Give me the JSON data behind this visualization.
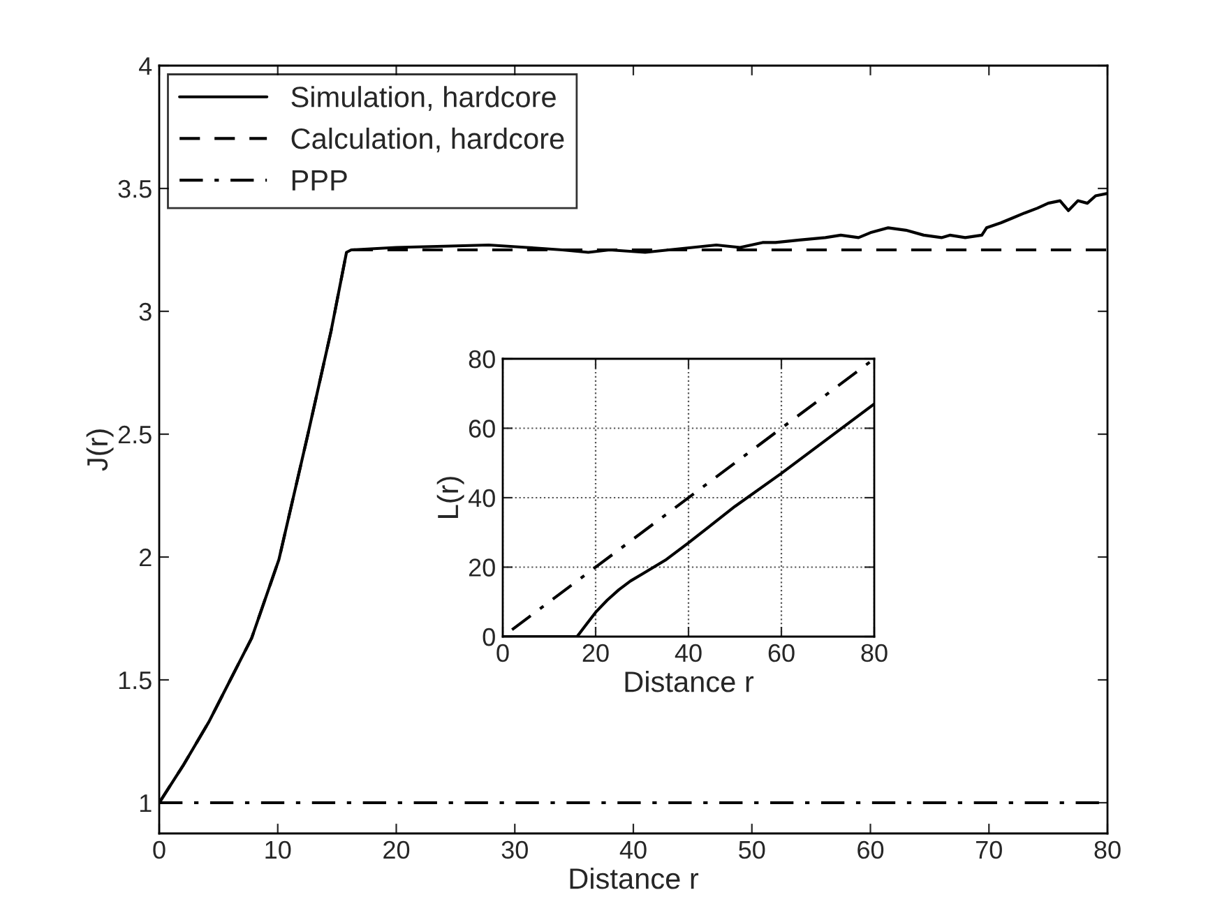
{
  "chart_data": [
    {
      "type": "line",
      "xlabel": "Distance r",
      "ylabel": "J(r)",
      "xlim": [
        0,
        80
      ],
      "ylim": [
        0.875,
        4
      ],
      "xticks": [
        0,
        10,
        20,
        30,
        40,
        50,
        60,
        70,
        80
      ],
      "yticks": [
        1,
        1.5,
        2,
        2.5,
        3,
        3.5,
        4
      ],
      "legend": "top left",
      "grid": false,
      "series": [
        {
          "name": "Simulation, hardcore",
          "color": "#000000",
          "line_style": "solid",
          "x": [
            0,
            2,
            4.2,
            6,
            7.8,
            10.1,
            12.5,
            14.5,
            15.8,
            16.2,
            20,
            24,
            27.8,
            31,
            34,
            36.2,
            38,
            41,
            43,
            45,
            47,
            49,
            50.9,
            52,
            54,
            56.2,
            57.5,
            59,
            60,
            61.5,
            63,
            64.5,
            66,
            66.7,
            68,
            69.4,
            69.8,
            71,
            72,
            73,
            74.1,
            75,
            76,
            76.7,
            77.5,
            78.3,
            79,
            80
          ],
          "values": [
            1,
            1.15,
            1.33,
            1.5,
            1.67,
            1.99,
            2.49,
            2.92,
            3.24,
            3.25,
            3.26,
            3.265,
            3.27,
            3.26,
            3.25,
            3.24,
            3.25,
            3.24,
            3.25,
            3.26,
            3.27,
            3.26,
            3.28,
            3.28,
            3.29,
            3.3,
            3.31,
            3.3,
            3.32,
            3.34,
            3.33,
            3.31,
            3.3,
            3.31,
            3.3,
            3.31,
            3.34,
            3.36,
            3.38,
            3.4,
            3.42,
            3.44,
            3.45,
            3.41,
            3.45,
            3.44,
            3.47,
            3.48
          ]
        },
        {
          "name": "Calculation, hardcore",
          "color": "#000000",
          "line_style": "dashed",
          "x": [
            0,
            2,
            4.2,
            6,
            7.8,
            10.1,
            12.5,
            14.5,
            15.8,
            16.2,
            80
          ],
          "values": [
            1,
            1.15,
            1.33,
            1.5,
            1.67,
            1.99,
            2.49,
            2.92,
            3.24,
            3.25,
            3.25
          ]
        },
        {
          "name": "PPP",
          "color": "#000000",
          "line_style": "dashdot",
          "x": [
            0,
            80
          ],
          "values": [
            1,
            1
          ]
        }
      ]
    },
    {
      "type": "line",
      "xlabel": "Distance r",
      "ylabel": "L(r)",
      "xlim": [
        0,
        80
      ],
      "ylim": [
        0,
        80
      ],
      "xticks": [
        0,
        20,
        40,
        60,
        80
      ],
      "yticks": [
        0,
        20,
        40,
        60,
        80
      ],
      "grid": true,
      "legend": false,
      "series": [
        {
          "color": "#000000",
          "line_style": "solid",
          "x": [
            0,
            16,
            18,
            20,
            22.5,
            25,
            27.5,
            30,
            35,
            40,
            50,
            60,
            70,
            80
          ],
          "values": [
            0,
            0,
            3.5,
            7,
            10.5,
            13.5,
            16,
            18,
            22,
            27,
            37.5,
            47,
            57,
            67
          ]
        },
        {
          "color": "#000000",
          "line_style": "dashdot",
          "x": [
            2,
            80
          ],
          "values": [
            2,
            80
          ]
        }
      ]
    }
  ]
}
